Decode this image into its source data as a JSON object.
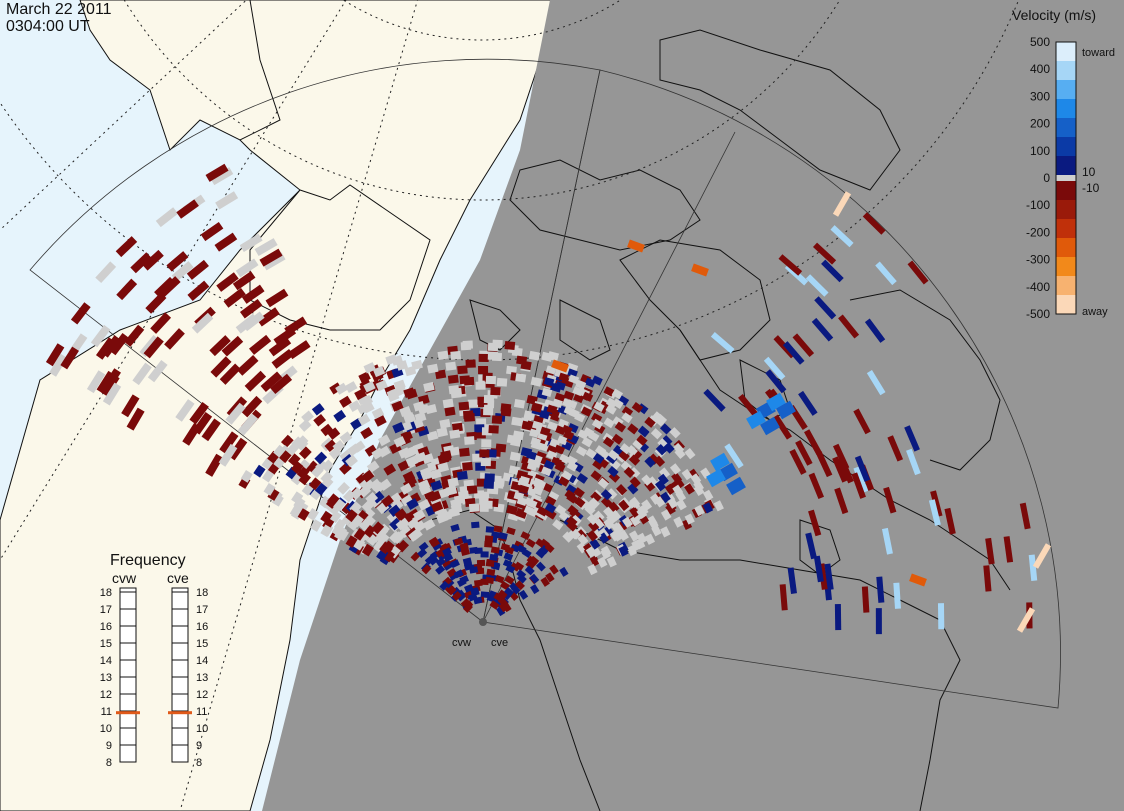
{
  "header": {
    "date": "March 22 2011",
    "time": "0304:00 UT"
  },
  "radars": [
    {
      "code": "cvw",
      "frequency_mhz": 10.9
    },
    {
      "code": "cve",
      "frequency_mhz": 10.9
    }
  ],
  "velocity_scale": {
    "title": "Velocity (m/s)",
    "tick_labels": [
      "500",
      "400",
      "300",
      "200",
      "100",
      "0",
      "-100",
      "-200",
      "-300",
      "-400",
      "-500"
    ],
    "inner_labels": [
      "10",
      "-10"
    ],
    "toward_label": "toward",
    "away_label": "away",
    "toward_colors": [
      "#0a1a80",
      "#0b3aa6",
      "#1560c8",
      "#1e88e8",
      "#57aef2",
      "#a6d6f6",
      "#dceefb"
    ],
    "away_colors": [
      "#7a0a0a",
      "#9a1a0a",
      "#c0300a",
      "#e05a0a",
      "#f2891a",
      "#f7b270",
      "#fbd8b8"
    ],
    "ground_scatter_color": "#cfcfcf"
  },
  "frequency_panel": {
    "title": "Frequency",
    "left_label": "cvw",
    "right_label": "cve",
    "ticks": [
      "18",
      "17",
      "16",
      "15",
      "14",
      "13",
      "12",
      "11",
      "10",
      "9",
      "8"
    ],
    "marker_color": "#e05a1a"
  },
  "colors": {
    "ocean": "#e6f4fc",
    "land_day": "#fbf8ea",
    "night": "#969696",
    "coast": "#111111",
    "ground_scatter": "#cfcfcf"
  }
}
